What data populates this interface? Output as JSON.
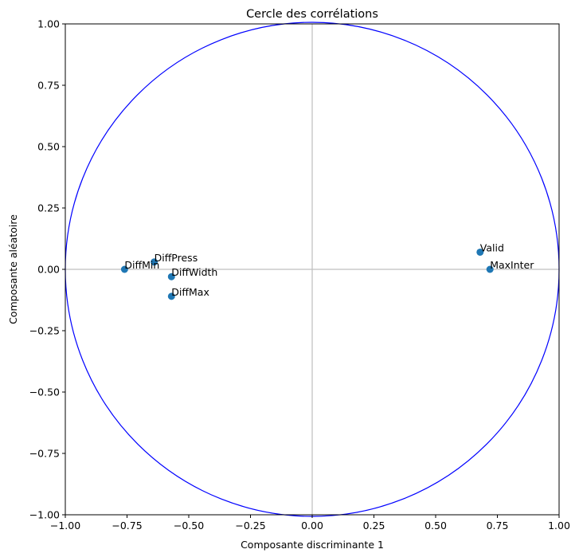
{
  "chart_data": {
    "type": "scatter",
    "title": "Cercle des corrélations",
    "xlabel": "Composante discriminante 1",
    "ylabel": "Composante aléatoire",
    "xlim": [
      -1.0,
      1.0
    ],
    "ylim": [
      -1.0,
      1.0
    ],
    "xticks": [
      -1.0,
      -0.75,
      -0.5,
      -0.25,
      0.0,
      0.25,
      0.5,
      0.75,
      1.0
    ],
    "xtick_labels": [
      "−1.00",
      "−0.75",
      "−0.50",
      "−0.25",
      "0.00",
      "0.25",
      "0.50",
      "0.75",
      "1.00"
    ],
    "yticks": [
      1.0,
      0.75,
      0.5,
      0.25,
      0.0,
      -0.25,
      -0.5,
      -0.75,
      -1.0
    ],
    "ytick_labels": [
      "1.00",
      "0.75",
      "0.50",
      "0.25",
      "0.00",
      "−0.25",
      "−0.50",
      "−0.75",
      "−1.00"
    ],
    "grid": false,
    "unit_circle": true,
    "reference_lines": [
      0,
      0
    ],
    "points": [
      {
        "label": "Valid",
        "x": 0.68,
        "y": 0.07
      },
      {
        "label": "MaxInter",
        "x": 0.72,
        "y": 0.0
      },
      {
        "label": "DiffPress",
        "x": -0.64,
        "y": 0.03
      },
      {
        "label": "DiffMin",
        "x": -0.76,
        "y": 0.0
      },
      {
        "label": "DiffWidth",
        "x": -0.57,
        "y": -0.03
      },
      {
        "label": "DiffMax",
        "x": -0.57,
        "y": -0.11
      }
    ],
    "colors": {
      "points": "#1f77b4",
      "circle": "#0000ff",
      "ref_lines": "#bfbfbf",
      "axes": "#000000"
    }
  }
}
